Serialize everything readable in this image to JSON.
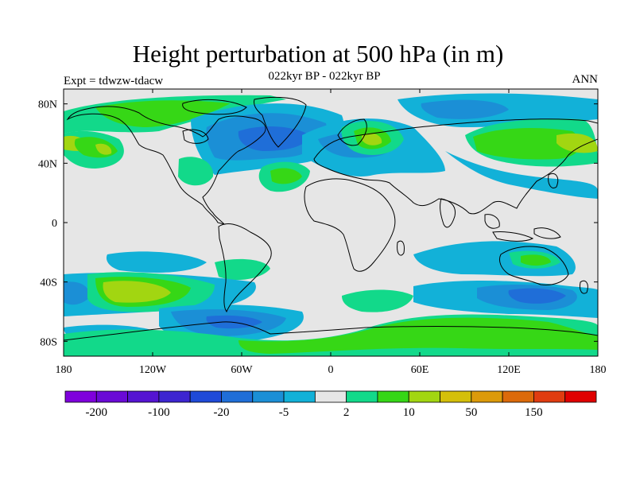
{
  "header": {
    "title": "Height perturbation at 500 hPa (in m)",
    "subtitle": "022kyr BP - 022kyr BP",
    "left_label": "Expt = tdwzw-tdacw",
    "right_label": "ANN"
  },
  "map": {
    "projection": "cylindrical equidistant",
    "lon_ticks": [
      "180",
      "120W",
      "60W",
      "0",
      "60E",
      "120E",
      "180"
    ],
    "lat_ticks": [
      "80N",
      "40N",
      "0",
      "40S",
      "80S"
    ],
    "background_color": "#e6e6e6",
    "coastline_color": "#000000"
  },
  "colorbar": {
    "colors": [
      "#7f00dc",
      "#6a0ad6",
      "#5514d2",
      "#3d25d0",
      "#1f4ad8",
      "#1f6ed8",
      "#1b8fd6",
      "#12b1d8",
      "#e6e6e6",
      "#12d98a",
      "#36d716",
      "#a2d611",
      "#d4bf0a",
      "#dc9a0a",
      "#dc6a0a",
      "#e03c10",
      "#e00000"
    ],
    "tick_labels": [
      "-200",
      "-100",
      "-20",
      "-5",
      "2",
      "10",
      "50",
      "150"
    ]
  }
}
